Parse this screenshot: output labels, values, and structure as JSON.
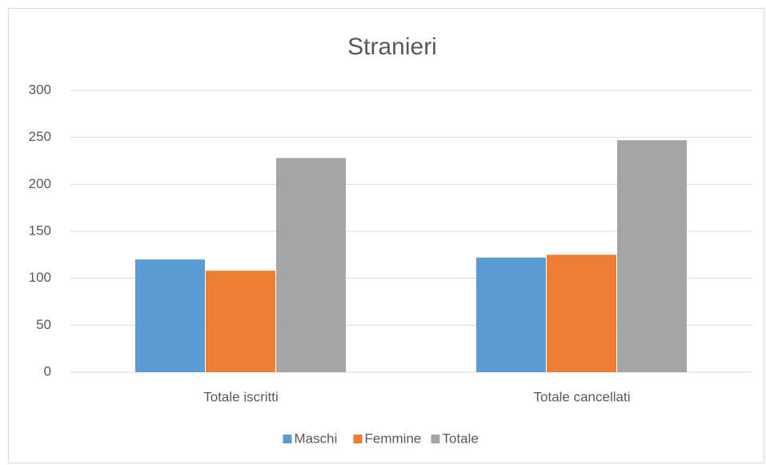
{
  "chart_data": {
    "type": "bar",
    "title": "Stranieri",
    "categories": [
      "Totale iscritti",
      "Totale cancellati"
    ],
    "series": [
      {
        "name": "Maschi",
        "color": "#5b9bd5",
        "values": [
          120,
          122
        ]
      },
      {
        "name": "Femmine",
        "color": "#ed7d31",
        "values": [
          108,
          125
        ]
      },
      {
        "name": "Totale",
        "color": "#a5a5a5",
        "values": [
          228,
          247
        ]
      }
    ],
    "ylim": [
      0,
      300
    ],
    "yticks": [
      0,
      50,
      100,
      150,
      200,
      250,
      300
    ],
    "grid": true,
    "legend": "bottom"
  }
}
